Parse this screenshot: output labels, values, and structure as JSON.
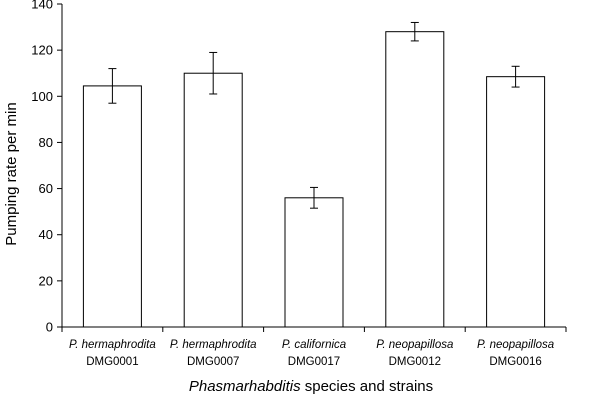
{
  "chart_data": {
    "type": "bar",
    "categories": [
      {
        "species": "P. hermaphrodita",
        "strain": "DMG0001"
      },
      {
        "species": "P. hermaphrodita",
        "strain": "DMG0007"
      },
      {
        "species": "P. californica",
        "strain": "DMG0017"
      },
      {
        "species": "P. neopapillosa",
        "strain": "DMG0012"
      },
      {
        "species": "P. neopapillosa",
        "strain": "DMG0016"
      }
    ],
    "values": [
      104.5,
      110,
      56,
      128,
      108.5
    ],
    "error": [
      7.5,
      9,
      4.5,
      4,
      4.5
    ],
    "ylabel": "Pumping rate per min",
    "xlabel_italic": "Phasmarhabditis",
    "xlabel_rest": " species and strains",
    "ylim": [
      0,
      140
    ],
    "yticks": [
      0,
      20,
      40,
      60,
      80,
      100,
      120,
      140
    ],
    "grid": false,
    "legend": "none",
    "colors": {
      "bar_fill": "#ffffff",
      "bar_stroke": "#000000",
      "axis": "#000000"
    }
  }
}
